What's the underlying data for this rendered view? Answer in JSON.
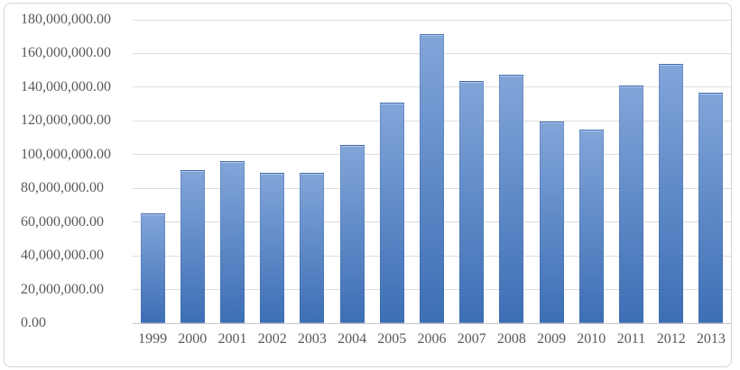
{
  "chart_data": {
    "type": "bar",
    "title": "",
    "xlabel": "",
    "ylabel": "",
    "categories": [
      "1999",
      "2000",
      "2001",
      "2002",
      "2003",
      "2004",
      "2005",
      "2006",
      "2007",
      "2008",
      "2009",
      "2010",
      "2011",
      "2012",
      "2013"
    ],
    "values": [
      65000000,
      91000000,
      96000000,
      89000000,
      89000000,
      106000000,
      131000000,
      171500000,
      143500000,
      147500000,
      119500000,
      115000000,
      141000000,
      154000000,
      136500000
    ],
    "ylim": [
      0,
      180000000
    ],
    "grid": true,
    "legend": "none",
    "y_ticks": [
      {
        "value": 0,
        "label": "0.00"
      },
      {
        "value": 20000000,
        "label": "20,000,000.00"
      },
      {
        "value": 40000000,
        "label": "40,000,000.00"
      },
      {
        "value": 60000000,
        "label": "60,000,000.00"
      },
      {
        "value": 80000000,
        "label": "80,000,000.00"
      },
      {
        "value": 100000000,
        "label": "100,000,000.00"
      },
      {
        "value": 120000000,
        "label": "120,000,000.00"
      },
      {
        "value": 140000000,
        "label": "140,000,000.00"
      },
      {
        "value": 160000000,
        "label": "160,000,000.00"
      },
      {
        "value": 180000000,
        "label": "180,000,000.00"
      }
    ],
    "colors": {
      "bar_gradient_top": "#82a5d9",
      "bar_gradient_bottom": "#3d6fb5",
      "axis_text": "#595959",
      "gridline": "#dcdcdc",
      "axis_line": "#c6c6c6",
      "frame_border": "#d6d6d6",
      "background": "#ffffff"
    }
  }
}
